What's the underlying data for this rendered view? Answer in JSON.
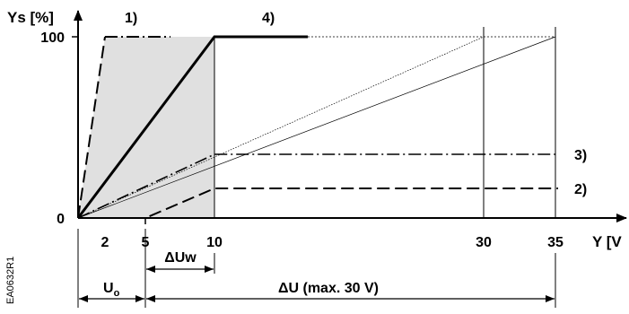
{
  "figure_id": "EA0632R1",
  "axes": {
    "y_label": "Ys [%]",
    "x_label": "Y [V",
    "y_ticks": [
      "100",
      "0"
    ],
    "x_ticks": [
      "2",
      "5",
      "10",
      "30",
      "35"
    ]
  },
  "curve_labels": {
    "c1": "1)",
    "c2": "2)",
    "c3": "3)",
    "c4": "4)"
  },
  "dimensions": {
    "delta_uw": "ΔUw",
    "u0_main": "U",
    "u0_sub": "o",
    "delta_u": "ΔU (max. 30 V)"
  },
  "colors": {
    "shade": "#e0e0e0",
    "line": "#000000"
  }
}
